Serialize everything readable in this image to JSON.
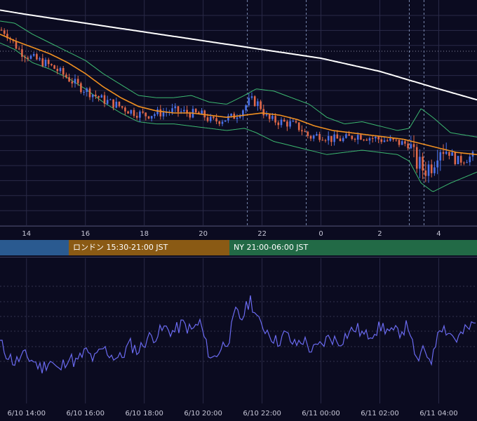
{
  "colors": {
    "background": "#0b0b20",
    "grid": "#2a2a48",
    "candle_up": "#4a72e8",
    "candle_down": "#e06848",
    "ma_short": "#f09020",
    "ma_long": "#ffffff",
    "bollinger": "#3cb870",
    "oscillator": "#6a6af0",
    "session_tokyo": "#2a5a90",
    "session_london": "#8a5a14",
    "session_ny": "#226a46"
  },
  "sessions": [
    {
      "label": "",
      "color": "#2a5a90"
    },
    {
      "label": "ロンドン 15:30-21:00 JST",
      "color": "#8a5a14"
    },
    {
      "label": "NY 21:00-06:00 JST",
      "color": "#226a46"
    }
  ],
  "chart_data": [
    {
      "type": "candlestick",
      "x_ticks": [
        "14",
        "16",
        "18",
        "20",
        "22",
        "0",
        "2",
        "4"
      ],
      "x_tick_hours": [
        14,
        16,
        18,
        20,
        22,
        24,
        26,
        28
      ],
      "x_range_hours": [
        13.1,
        29.3
      ],
      "y_range": [
        0,
        100
      ],
      "price_anchors": [
        [
          13.1,
          88
        ],
        [
          13.3,
          87
        ],
        [
          13.5,
          83
        ],
        [
          13.8,
          78
        ],
        [
          14.2,
          75
        ],
        [
          14.6,
          73
        ],
        [
          15.0,
          70
        ],
        [
          15.4,
          66
        ],
        [
          15.8,
          62
        ],
        [
          16.2,
          59
        ],
        [
          16.6,
          56
        ],
        [
          17.0,
          54
        ],
        [
          17.5,
          51
        ],
        [
          18.0,
          49
        ],
        [
          18.5,
          50
        ],
        [
          19.0,
          51
        ],
        [
          19.5,
          50
        ],
        [
          20.0,
          49
        ],
        [
          20.3,
          46
        ],
        [
          20.6,
          47
        ],
        [
          21.0,
          48
        ],
        [
          21.3,
          51
        ],
        [
          21.6,
          56
        ],
        [
          21.9,
          54
        ],
        [
          22.2,
          47
        ],
        [
          22.6,
          46
        ],
        [
          23.0,
          45
        ],
        [
          23.3,
          43
        ],
        [
          23.6,
          39
        ],
        [
          24.0,
          40
        ],
        [
          24.4,
          38
        ],
        [
          24.8,
          38
        ],
        [
          25.2,
          40
        ],
        [
          25.6,
          39
        ],
        [
          26.0,
          38
        ],
        [
          26.4,
          37
        ],
        [
          26.8,
          36
        ],
        [
          27.0,
          36
        ],
        [
          27.2,
          28
        ],
        [
          27.5,
          24
        ],
        [
          27.8,
          27
        ],
        [
          28.0,
          35
        ],
        [
          28.3,
          33
        ],
        [
          28.6,
          28
        ],
        [
          28.9,
          29
        ],
        [
          29.3,
          31
        ]
      ],
      "ma_short_anchors": [
        [
          13.1,
          86
        ],
        [
          13.6,
          83
        ],
        [
          14.2,
          80
        ],
        [
          14.8,
          77
        ],
        [
          15.4,
          73
        ],
        [
          16.0,
          68
        ],
        [
          16.6,
          62
        ],
        [
          17.2,
          57
        ],
        [
          17.8,
          53
        ],
        [
          18.4,
          51
        ],
        [
          19.0,
          50
        ],
        [
          19.6,
          50
        ],
        [
          20.2,
          49
        ],
        [
          20.8,
          48
        ],
        [
          21.4,
          49
        ],
        [
          22.0,
          50
        ],
        [
          22.6,
          49
        ],
        [
          23.2,
          47
        ],
        [
          23.8,
          44
        ],
        [
          24.4,
          42
        ],
        [
          25.0,
          41
        ],
        [
          25.6,
          40
        ],
        [
          26.2,
          39
        ],
        [
          26.8,
          38
        ],
        [
          27.4,
          36
        ],
        [
          28.0,
          34
        ],
        [
          28.6,
          32
        ],
        [
          29.3,
          31
        ]
      ],
      "ma_long_anchors": [
        [
          13.1,
          97
        ],
        [
          14.0,
          95
        ],
        [
          15.0,
          93
        ],
        [
          16.0,
          91
        ],
        [
          17.0,
          89
        ],
        [
          18.0,
          87
        ],
        [
          19.0,
          85
        ],
        [
          20.0,
          83
        ],
        [
          21.0,
          81
        ],
        [
          22.0,
          79
        ],
        [
          23.0,
          77
        ],
        [
          24.0,
          75
        ],
        [
          25.0,
          72
        ],
        [
          26.0,
          69
        ],
        [
          27.0,
          65
        ],
        [
          28.0,
          61
        ],
        [
          29.3,
          56
        ]
      ],
      "bollinger_upper_anchors": [
        [
          13.1,
          92
        ],
        [
          13.6,
          91
        ],
        [
          14.2,
          86
        ],
        [
          14.8,
          82
        ],
        [
          15.4,
          78
        ],
        [
          16.0,
          74
        ],
        [
          16.6,
          68
        ],
        [
          17.2,
          63
        ],
        [
          17.8,
          58
        ],
        [
          18.4,
          57
        ],
        [
          19.0,
          57
        ],
        [
          19.6,
          58
        ],
        [
          20.2,
          55
        ],
        [
          20.8,
          54
        ],
        [
          21.4,
          58
        ],
        [
          21.8,
          61
        ],
        [
          22.4,
          60
        ],
        [
          23.0,
          57
        ],
        [
          23.6,
          54
        ],
        [
          24.2,
          48
        ],
        [
          24.8,
          45
        ],
        [
          25.4,
          46
        ],
        [
          26.0,
          44
        ],
        [
          26.6,
          42
        ],
        [
          27.0,
          43
        ],
        [
          27.4,
          52
        ],
        [
          27.8,
          48
        ],
        [
          28.4,
          41
        ],
        [
          29.3,
          39
        ]
      ],
      "bollinger_lower_anchors": [
        [
          13.1,
          82
        ],
        [
          13.6,
          79
        ],
        [
          14.2,
          73
        ],
        [
          14.8,
          70
        ],
        [
          15.4,
          66
        ],
        [
          16.0,
          61
        ],
        [
          16.6,
          55
        ],
        [
          17.2,
          50
        ],
        [
          17.8,
          46
        ],
        [
          18.4,
          45
        ],
        [
          19.0,
          45
        ],
        [
          19.6,
          44
        ],
        [
          20.2,
          43
        ],
        [
          20.8,
          42
        ],
        [
          21.4,
          43
        ],
        [
          21.8,
          41
        ],
        [
          22.4,
          37
        ],
        [
          23.0,
          35
        ],
        [
          23.6,
          33
        ],
        [
          24.2,
          31
        ],
        [
          24.8,
          32
        ],
        [
          25.4,
          33
        ],
        [
          26.0,
          32
        ],
        [
          26.6,
          31
        ],
        [
          27.0,
          28
        ],
        [
          27.4,
          18
        ],
        [
          27.8,
          14
        ],
        [
          28.4,
          18
        ],
        [
          29.3,
          23
        ]
      ],
      "vertical_markers_hours": [
        21.5,
        23.5,
        27.0,
        27.5
      ]
    },
    {
      "type": "line",
      "x_ticks": [
        "6/10 14:00",
        "6/10 16:00",
        "6/10 18:00",
        "6/10 20:00",
        "6/10 22:00",
        "6/11 00:00",
        "6/11 02:00",
        "6/11 04:00"
      ],
      "x_tick_hours": [
        14,
        16,
        18,
        20,
        22,
        24,
        26,
        28
      ],
      "x_range_hours": [
        13.1,
        29.3
      ],
      "y_range": [
        0,
        100
      ],
      "series_anchors": [
        [
          13.1,
          42
        ],
        [
          13.3,
          35
        ],
        [
          13.6,
          28
        ],
        [
          13.9,
          33
        ],
        [
          14.2,
          30
        ],
        [
          14.5,
          24
        ],
        [
          14.8,
          30
        ],
        [
          15.1,
          22
        ],
        [
          15.4,
          32
        ],
        [
          15.7,
          28
        ],
        [
          16.0,
          36
        ],
        [
          16.3,
          30
        ],
        [
          16.6,
          38
        ],
        [
          16.9,
          33
        ],
        [
          17.2,
          31
        ],
        [
          17.5,
          41
        ],
        [
          17.8,
          36
        ],
        [
          18.1,
          45
        ],
        [
          18.4,
          47
        ],
        [
          18.7,
          52
        ],
        [
          19.0,
          49
        ],
        [
          19.3,
          55
        ],
        [
          19.6,
          50
        ],
        [
          19.9,
          56
        ],
        [
          20.1,
          40
        ],
        [
          20.3,
          30
        ],
        [
          20.6,
          38
        ],
        [
          20.9,
          46
        ],
        [
          21.1,
          63
        ],
        [
          21.3,
          58
        ],
        [
          21.6,
          72
        ],
        [
          21.9,
          55
        ],
        [
          22.2,
          50
        ],
        [
          22.5,
          42
        ],
        [
          22.8,
          48
        ],
        [
          23.1,
          40
        ],
        [
          23.4,
          44
        ],
        [
          23.7,
          36
        ],
        [
          24.0,
          40
        ],
        [
          24.3,
          46
        ],
        [
          24.6,
          42
        ],
        [
          24.9,
          48
        ],
        [
          25.2,
          52
        ],
        [
          25.5,
          46
        ],
        [
          25.8,
          50
        ],
        [
          26.1,
          53
        ],
        [
          26.4,
          48
        ],
        [
          26.7,
          50
        ],
        [
          27.0,
          54
        ],
        [
          27.2,
          28
        ],
        [
          27.5,
          36
        ],
        [
          27.8,
          30
        ],
        [
          28.0,
          55
        ],
        [
          28.3,
          50
        ],
        [
          28.6,
          44
        ],
        [
          28.9,
          50
        ],
        [
          29.3,
          56
        ]
      ]
    }
  ]
}
